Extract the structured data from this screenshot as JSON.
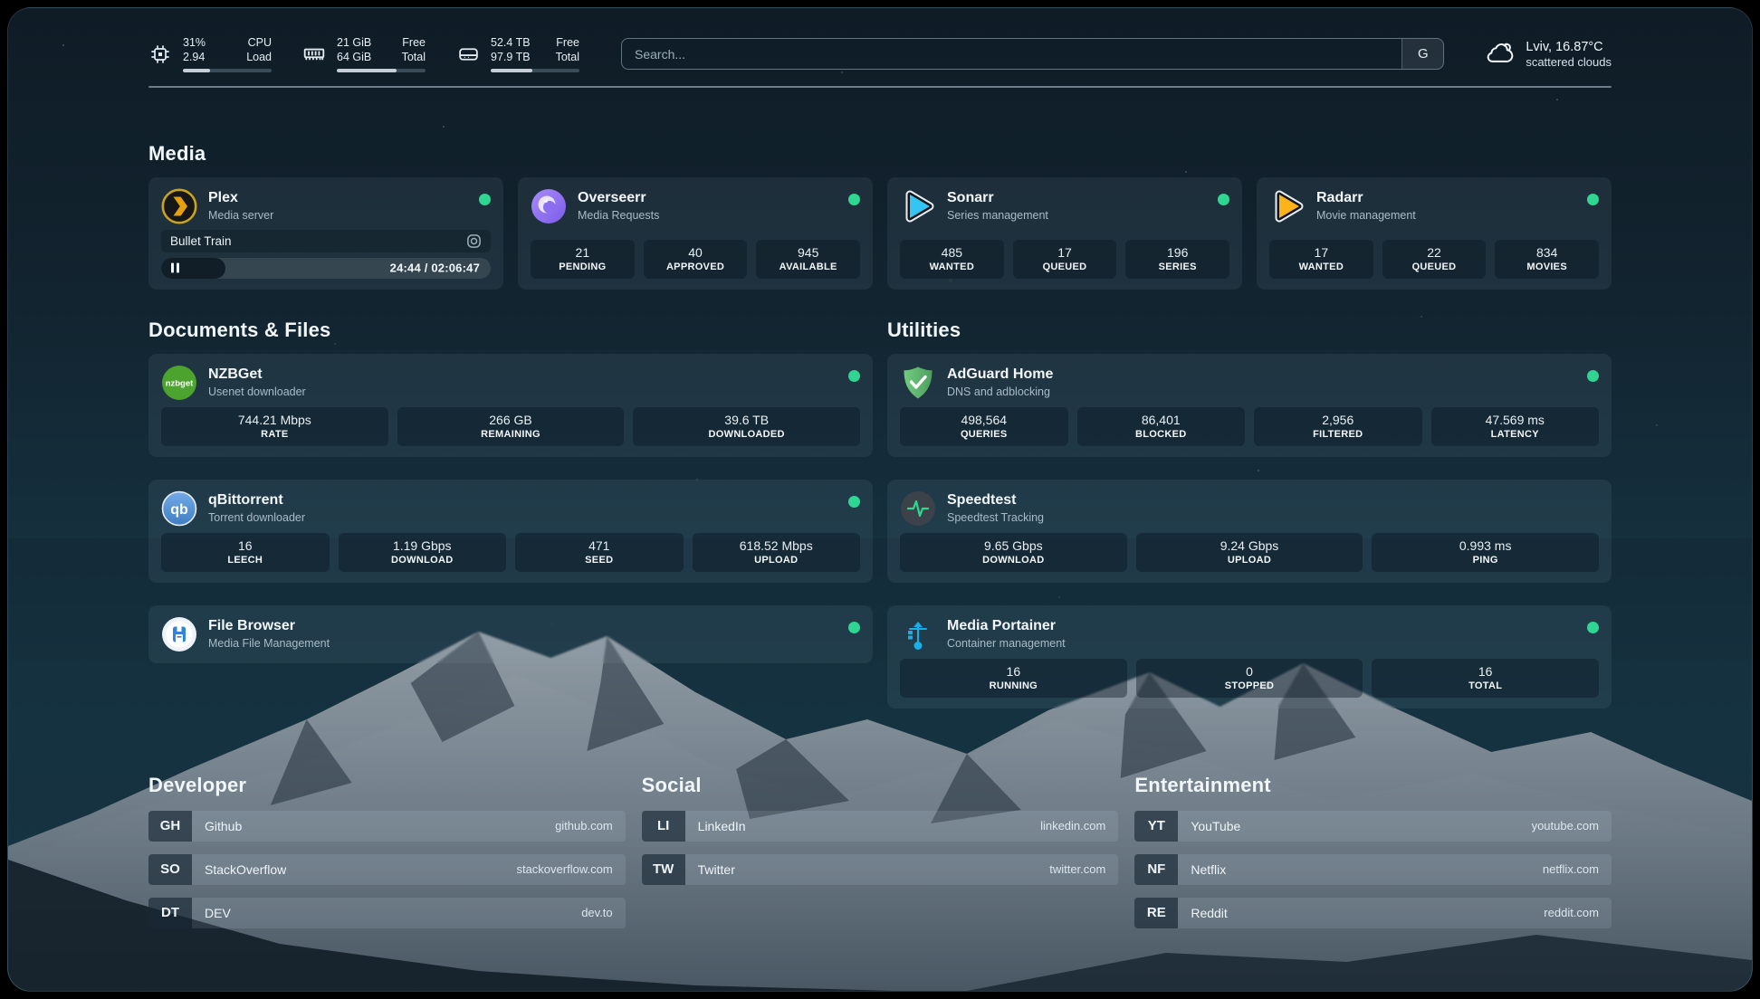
{
  "topbar": {
    "cpu": {
      "icon": "chip-icon",
      "value_primary": "31%",
      "value_secondary": "2.94",
      "label_primary": "CPU",
      "label_secondary": "Load",
      "progress_pct": 31
    },
    "memory": {
      "icon": "memory-icon",
      "value_primary": "21 GiB",
      "value_secondary": "64 GiB",
      "label_primary": "Free",
      "label_secondary": "Total",
      "progress_pct": 67
    },
    "disk": {
      "icon": "disk-icon",
      "value_primary": "52.4 TB",
      "value_secondary": "97.9 TB",
      "label_primary": "Free",
      "label_secondary": "Total",
      "progress_pct": 47
    },
    "search": {
      "placeholder": "Search...",
      "provider_button": "G"
    },
    "weather": {
      "icon": "cloud-icon",
      "location_temperature": "Lviv, 16.87°C",
      "condition": "scattered clouds"
    }
  },
  "sections": {
    "media": "Media",
    "documents": "Documents & Files",
    "utilities": "Utilities",
    "developer": "Developer",
    "social": "Social",
    "entertainment": "Entertainment"
  },
  "services": {
    "plex": {
      "name": "Plex",
      "desc": "Media server",
      "icon": "plex-icon",
      "status": "online",
      "now_playing": "Bullet Train",
      "time_display": "24:44 / 02:06:47",
      "progress_pct": 19.5
    },
    "overseerr": {
      "name": "Overseerr",
      "desc": "Media Requests",
      "icon": "overseerr-icon",
      "status": "online",
      "stats": [
        {
          "value": "21",
          "label": "PENDING"
        },
        {
          "value": "40",
          "label": "APPROVED"
        },
        {
          "value": "945",
          "label": "AVAILABLE"
        }
      ]
    },
    "sonarr": {
      "name": "Sonarr",
      "desc": "Series management",
      "icon": "sonarr-icon",
      "status": "online",
      "stats": [
        {
          "value": "485",
          "label": "WANTED"
        },
        {
          "value": "17",
          "label": "QUEUED"
        },
        {
          "value": "196",
          "label": "SERIES"
        }
      ]
    },
    "radarr": {
      "name": "Radarr",
      "desc": "Movie management",
      "icon": "radarr-icon",
      "status": "online",
      "stats": [
        {
          "value": "17",
          "label": "WANTED"
        },
        {
          "value": "22",
          "label": "QUEUED"
        },
        {
          "value": "834",
          "label": "MOVIES"
        }
      ]
    },
    "nzbget": {
      "name": "NZBGet",
      "desc": "Usenet downloader",
      "icon": "nzbget-icon",
      "icon_text": "nzbget",
      "status": "online",
      "stats": [
        {
          "value": "744.21 Mbps",
          "label": "RATE"
        },
        {
          "value": "266 GB",
          "label": "REMAINING"
        },
        {
          "value": "39.6 TB",
          "label": "DOWNLOADED"
        }
      ]
    },
    "qbittorrent": {
      "name": "qBittorrent",
      "desc": "Torrent downloader",
      "icon": "qbittorrent-icon",
      "icon_text": "qb",
      "status": "online",
      "stats": [
        {
          "value": "16",
          "label": "LEECH"
        },
        {
          "value": "1.19 Gbps",
          "label": "DOWNLOAD"
        },
        {
          "value": "471",
          "label": "SEED"
        },
        {
          "value": "618.52 Mbps",
          "label": "UPLOAD"
        }
      ]
    },
    "filebrowser": {
      "name": "File Browser",
      "desc": "Media File Management",
      "icon": "filebrowser-icon",
      "status": "online"
    },
    "adguard": {
      "name": "AdGuard Home",
      "desc": "DNS and adblocking",
      "icon": "adguard-shield-icon",
      "status": "online",
      "stats": [
        {
          "value": "498,564",
          "label": "QUERIES"
        },
        {
          "value": "86,401",
          "label": "BLOCKED"
        },
        {
          "value": "2,956",
          "label": "FILTERED"
        },
        {
          "value": "47.569 ms",
          "label": "LATENCY"
        }
      ]
    },
    "speedtest": {
      "name": "Speedtest",
      "desc": "Speedtest Tracking",
      "icon": "speedtest-pulse-icon",
      "status": "online",
      "stats": [
        {
          "value": "9.65 Gbps",
          "label": "DOWNLOAD"
        },
        {
          "value": "9.24 Gbps",
          "label": "UPLOAD"
        },
        {
          "value": "0.993 ms",
          "label": "PING"
        }
      ]
    },
    "portainer": {
      "name": "Media Portainer",
      "desc": "Container management",
      "icon": "portainer-crane-icon",
      "status": "online",
      "stats": [
        {
          "value": "16",
          "label": "RUNNING"
        },
        {
          "value": "0",
          "label": "STOPPED"
        },
        {
          "value": "16",
          "label": "TOTAL"
        }
      ]
    }
  },
  "links": {
    "developer": {
      "items": [
        {
          "abbr": "GH",
          "name": "Github",
          "url": "github.com"
        },
        {
          "abbr": "SO",
          "name": "StackOverflow",
          "url": "stackoverflow.com"
        },
        {
          "abbr": "DT",
          "name": "DEV",
          "url": "dev.to"
        }
      ]
    },
    "social": {
      "items": [
        {
          "abbr": "LI",
          "name": "LinkedIn",
          "url": "linkedin.com"
        },
        {
          "abbr": "TW",
          "name": "Twitter",
          "url": "twitter.com"
        }
      ]
    },
    "entertainment": {
      "items": [
        {
          "abbr": "YT",
          "name": "YouTube",
          "url": "youtube.com"
        },
        {
          "abbr": "NF",
          "name": "Netflix",
          "url": "netflix.com"
        },
        {
          "abbr": "RE",
          "name": "Reddit",
          "url": "reddit.com"
        }
      ]
    }
  },
  "colors": {
    "status_online": "#2fd692",
    "plex": "#e5a00d",
    "overseerr": "#8b5cf6",
    "sonarr": "#35c5f4",
    "radarr": "#ffb31a",
    "nzbget": "#4ca32e",
    "qbittorrent": "#468fd4",
    "filebrowser": "#2f86d8",
    "adguard": "#67b279",
    "speedtest": "#2bd98f",
    "portainer": "#18b0e8"
  }
}
